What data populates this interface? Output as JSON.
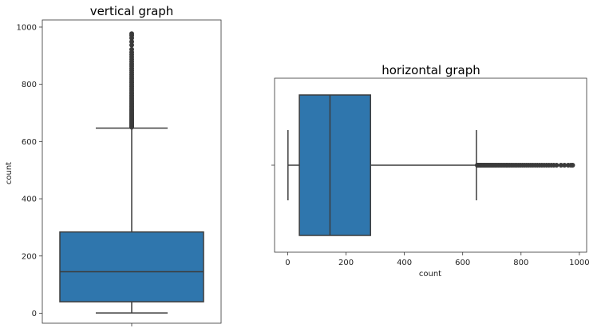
{
  "chart_data": [
    {
      "type": "boxplot",
      "orientation": "vertical",
      "title": "vertical graph",
      "xlabel": "",
      "ylabel": "count",
      "ylim": [
        -35,
        1025
      ],
      "ticks": [
        0,
        200,
        400,
        600,
        800,
        1000
      ],
      "tick_labels": [
        "0",
        "200",
        "400",
        "600",
        "800",
        "1000"
      ],
      "box": {
        "min": 1,
        "q1": 40,
        "median": 145,
        "q3": 284,
        "whisker_high": 647
      },
      "outlier_range": [
        650,
        977
      ],
      "box_color": "#2f76ad",
      "line_color": "#3c3c3c"
    },
    {
      "type": "boxplot",
      "orientation": "horizontal",
      "title": "horizontal graph",
      "xlabel": "count",
      "ylabel": "",
      "xlim": [
        -45,
        1025
      ],
      "ticks": [
        0,
        200,
        400,
        600,
        800,
        1000
      ],
      "tick_labels": [
        "0",
        "200",
        "400",
        "600",
        "800",
        "1000"
      ],
      "box": {
        "min": 1,
        "q1": 40,
        "median": 145,
        "q3": 284,
        "whisker_high": 647
      },
      "outlier_range": [
        650,
        977
      ],
      "box_color": "#2f76ad",
      "line_color": "#3c3c3c"
    }
  ]
}
